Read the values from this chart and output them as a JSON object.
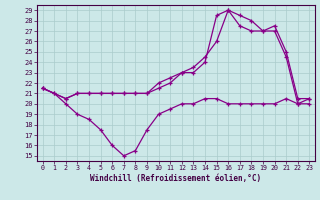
{
  "xlabel": "Windchill (Refroidissement éolien,°C)",
  "bg_color": "#cce8e8",
  "line_color": "#880088",
  "xlim": [
    -0.5,
    23.5
  ],
  "ylim": [
    14.5,
    29.5
  ],
  "xticks": [
    0,
    1,
    2,
    3,
    4,
    5,
    6,
    7,
    8,
    9,
    10,
    11,
    12,
    13,
    14,
    15,
    16,
    17,
    18,
    19,
    20,
    21,
    22,
    23
  ],
  "yticks": [
    15,
    16,
    17,
    18,
    19,
    20,
    21,
    22,
    23,
    24,
    25,
    26,
    27,
    28,
    29
  ],
  "line1_x": [
    0,
    1,
    2,
    3,
    4,
    5,
    6,
    7,
    8,
    9,
    10,
    11,
    12,
    13,
    14,
    15,
    16,
    17,
    18,
    19,
    20,
    21,
    22,
    23
  ],
  "line1_y": [
    21.5,
    21.0,
    20.0,
    19.0,
    18.5,
    17.5,
    16.0,
    15.0,
    15.5,
    17.5,
    19.0,
    19.5,
    20.0,
    20.0,
    20.5,
    20.5,
    20.0,
    20.0,
    20.0,
    20.0,
    20.0,
    20.5,
    20.0,
    20.0
  ],
  "line2_x": [
    0,
    1,
    2,
    3,
    4,
    5,
    6,
    7,
    8,
    9,
    10,
    11,
    12,
    13,
    14,
    15,
    16,
    17,
    18,
    19,
    20,
    21,
    22,
    23
  ],
  "line2_y": [
    21.5,
    21.0,
    20.5,
    21.0,
    21.0,
    21.0,
    21.0,
    21.0,
    21.0,
    21.0,
    21.5,
    22.0,
    23.0,
    23.0,
    24.0,
    28.5,
    29.0,
    27.5,
    27.0,
    27.0,
    27.0,
    24.5,
    20.0,
    20.5
  ],
  "line3_x": [
    0,
    2,
    3,
    4,
    5,
    6,
    7,
    8,
    9,
    10,
    11,
    12,
    13,
    14,
    15,
    16,
    17,
    18,
    19,
    20,
    21,
    22,
    23
  ],
  "line3_y": [
    21.5,
    20.5,
    21.0,
    21.0,
    21.0,
    21.0,
    21.0,
    21.0,
    21.0,
    22.0,
    22.5,
    23.0,
    23.5,
    24.5,
    26.0,
    29.0,
    28.5,
    28.0,
    27.0,
    27.5,
    25.0,
    20.5,
    20.5
  ]
}
